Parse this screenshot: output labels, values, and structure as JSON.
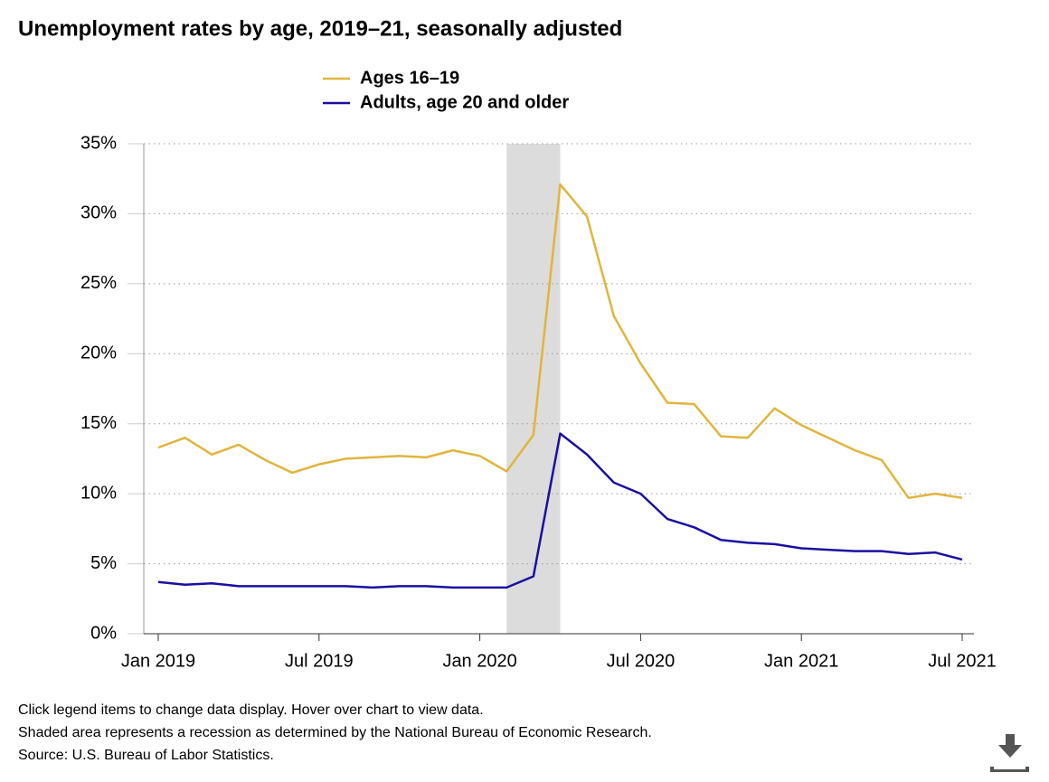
{
  "chart_data": {
    "type": "line",
    "title": "Unemployment rates by age, 2019–21, seasonally adjusted",
    "x": [
      "2019-01",
      "2019-02",
      "2019-03",
      "2019-04",
      "2019-05",
      "2019-06",
      "2019-07",
      "2019-08",
      "2019-09",
      "2019-10",
      "2019-11",
      "2019-12",
      "2020-01",
      "2020-02",
      "2020-03",
      "2020-04",
      "2020-05",
      "2020-06",
      "2020-07",
      "2020-08",
      "2020-09",
      "2020-10",
      "2020-11",
      "2020-12",
      "2021-01",
      "2021-02",
      "2021-03",
      "2021-04",
      "2021-05",
      "2021-06",
      "2021-07"
    ],
    "series": [
      {
        "name": "Ages 16–19",
        "color": "#e1b43c",
        "values": [
          13.3,
          14.0,
          12.8,
          13.5,
          12.4,
          11.5,
          12.1,
          12.5,
          12.6,
          12.7,
          12.6,
          13.1,
          12.7,
          11.6,
          14.2,
          32.1,
          29.8,
          22.7,
          19.3,
          16.5,
          16.4,
          14.1,
          14.0,
          16.1,
          14.9,
          14.0,
          13.1,
          12.4,
          9.7,
          10.0,
          9.7
        ]
      },
      {
        "name": "Adults, age 20 and older",
        "color": "#1a0fa0",
        "values": [
          3.7,
          3.5,
          3.6,
          3.4,
          3.4,
          3.4,
          3.4,
          3.4,
          3.3,
          3.4,
          3.4,
          3.3,
          3.3,
          3.3,
          4.1,
          14.3,
          12.8,
          10.8,
          10.0,
          8.2,
          7.6,
          6.7,
          6.5,
          6.4,
          6.1,
          6.0,
          5.9,
          5.9,
          5.7,
          5.8,
          5.3
        ]
      }
    ],
    "xticks": [
      {
        "value": "2019-01",
        "label": "Jan 2019"
      },
      {
        "value": "2019-07",
        "label": "Jul 2019"
      },
      {
        "value": "2020-01",
        "label": "Jan 2020"
      },
      {
        "value": "2020-07",
        "label": "Jul 2020"
      },
      {
        "value": "2021-01",
        "label": "Jan 2021"
      },
      {
        "value": "2021-07",
        "label": "Jul 2021"
      }
    ],
    "ylim": [
      0,
      35
    ],
    "yticks": [
      {
        "value": 0,
        "label": "0%"
      },
      {
        "value": 5,
        "label": "5%"
      },
      {
        "value": 10,
        "label": "10%"
      },
      {
        "value": 15,
        "label": "15%"
      },
      {
        "value": 20,
        "label": "20%"
      },
      {
        "value": 25,
        "label": "25%"
      },
      {
        "value": 30,
        "label": "30%"
      },
      {
        "value": 35,
        "label": "35%"
      }
    ],
    "grid": true,
    "shaded_range": [
      "2020-02",
      "2020-04"
    ],
    "legend": "top",
    "notes": [
      "Click legend items to change data display. Hover over chart to view data.",
      "Shaded area represents a recession as determined by the National Bureau of Economic Research.",
      "Source: U.S. Bureau of Labor Statistics."
    ]
  }
}
